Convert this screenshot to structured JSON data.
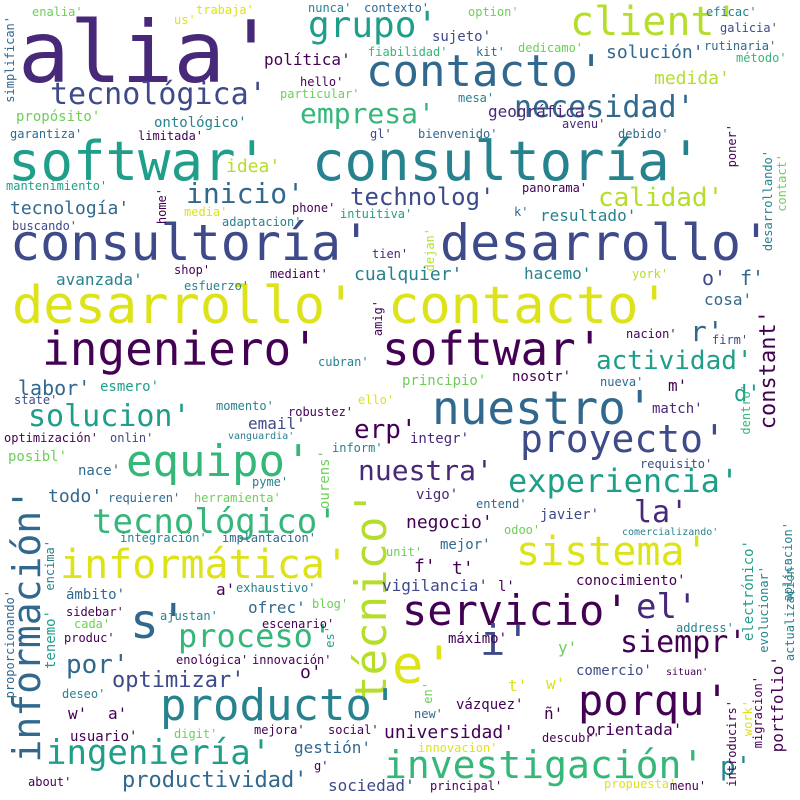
{
  "palette": {
    "dark_purple": "#440154",
    "indigo": "#482878",
    "navy": "#3e4a89",
    "blue": "#31688e",
    "teal": "#26828e",
    "cyan_green": "#1f9e89",
    "green": "#35b779",
    "light_green": "#6ece58",
    "yellow_green": "#b5de2b",
    "yellow": "#dde318",
    "bright_yellow": "#fde725"
  },
  "words": [
    "alia'",
    "softwar'",
    "consultoría'",
    "desarrollo'",
    "contacto'",
    "ingeniero'",
    "client'",
    "grupo'",
    "tecnológica'",
    "empresa'",
    "necesidad'",
    "inicio'",
    "technolog'",
    "calidad'",
    "r'",
    "actividad'",
    "constant'",
    "nuestro'",
    "proyecto'",
    "equipo'",
    "solucion'",
    "labor'",
    "erp'",
    "nuestra'",
    "experiencia'",
    "información'",
    "sistema'",
    "informática'",
    "técnico'",
    "tecnológico'",
    "la'",
    "servicio'",
    "el'",
    "s'",
    "e'",
    "i'",
    "proceso'",
    "siempr'",
    "producto'",
    "porqu'",
    "por'",
    "optimizar'",
    "ingeniería'",
    "investigación'",
    "productividad'",
    "p'",
    "enalia'",
    "nunca'",
    "contexto'",
    "option'",
    "eficac'",
    "galicia'",
    "trabaja'",
    "us'",
    "simplifican'",
    "sujeto'",
    "kit'",
    "dedicamo'",
    "solución'",
    "medida'",
    "método'",
    "política'",
    "fiabilidad'",
    "rutinaria'",
    "hello'",
    "particular'",
    "mesa'",
    "propósito'",
    "ontológico'",
    "geográfica'",
    "avenu'",
    "garantiza'",
    "limitada'",
    "gl'",
    "bienvenido'",
    "debido'",
    "poner'",
    "idea'",
    "mantenimiento'",
    "panorama'",
    "desarrollando'",
    "contact'",
    "tecnología'",
    "home'",
    "media'",
    "phone'",
    "intuitiva'",
    "k'",
    "resultado'",
    "buscando'",
    "adaptacion'",
    "tien'",
    "dejan'",
    "o'",
    "f'",
    "avanzada'",
    "shop'",
    "cualquier'",
    "hacemo'",
    "york'",
    "esfuerzo'",
    "mediant'",
    "cosa'",
    "amig'",
    "nacion'",
    "firm'",
    "cubran'",
    "principio'",
    "nosotr'",
    "m'",
    "esmero'",
    "d'",
    "state'",
    "ello'",
    "nueva'",
    "dentro'",
    "momento'",
    "robustez'",
    "match'",
    "email'",
    "optimización'",
    "onlin'",
    "vanguardia'",
    "inform'",
    "integr'",
    "posibl'",
    "requisito'",
    "nace'",
    "ourens'",
    "vigo'",
    "pyme'",
    "entend'",
    "todo'",
    "requieren'",
    "herramienta'",
    "negocio'",
    "javier'",
    "odoo'",
    "integración'",
    "implantacion'",
    "mejor'",
    "encima'",
    "unit'",
    "comercializando'",
    "aplicacion'",
    "electrónico'",
    "t'",
    "a'",
    "exhaustivo'",
    "vigilancia'",
    "l'",
    "conocimiento'",
    "ámbito'",
    "ofrec'",
    "blog'",
    "actualización'",
    "sidebar'",
    "ajustan'",
    "evolucionar'",
    "tenemo'",
    "cada'",
    "escenario'",
    "proporcionando'",
    "produc'",
    "es'",
    "máximo'",
    "address'",
    "enológica'",
    "innovación'",
    "y'",
    "comercio'",
    "deseo'",
    "situan'",
    "portfolio'",
    "w'",
    "en'",
    "vázquez'",
    "migracion'",
    "new'",
    "ñ'",
    "introducirs'",
    "work'",
    "usuario'",
    "digit'",
    "mejora'",
    "social'",
    "universidad'",
    "orientada'",
    "gestión'",
    "innovacion'",
    "descubr'",
    "g'",
    "sociedad'",
    "about'",
    "principal'",
    "propuesta'",
    "menu'"
  ]
}
